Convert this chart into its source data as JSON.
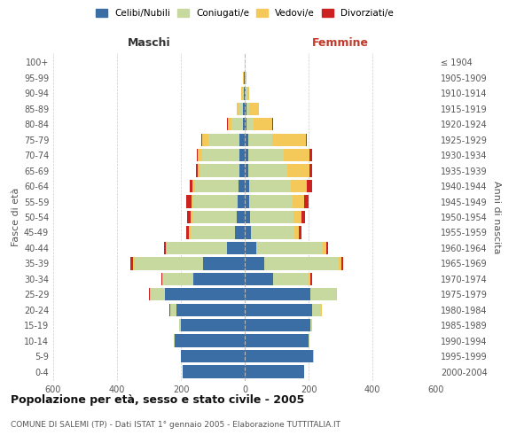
{
  "age_groups": [
    "0-4",
    "5-9",
    "10-14",
    "15-19",
    "20-24",
    "25-29",
    "30-34",
    "35-39",
    "40-44",
    "45-49",
    "50-54",
    "55-59",
    "60-64",
    "65-69",
    "70-74",
    "75-79",
    "80-84",
    "85-89",
    "90-94",
    "95-99",
    "100+"
  ],
  "birth_years": [
    "2000-2004",
    "1995-1999",
    "1990-1994",
    "1985-1989",
    "1980-1984",
    "1975-1979",
    "1970-1974",
    "1965-1969",
    "1960-1964",
    "1955-1959",
    "1950-1954",
    "1945-1949",
    "1940-1944",
    "1935-1939",
    "1930-1934",
    "1925-1929",
    "1920-1924",
    "1915-1919",
    "1910-1914",
    "1905-1909",
    "≤ 1904"
  ],
  "maschi": {
    "celibi": [
      195,
      200,
      220,
      200,
      215,
      250,
      160,
      130,
      55,
      30,
      25,
      22,
      20,
      18,
      17,
      18,
      6,
      5,
      3,
      2,
      0
    ],
    "coniugati": [
      0,
      0,
      2,
      5,
      18,
      45,
      95,
      215,
      190,
      140,
      140,
      140,
      135,
      120,
      115,
      95,
      35,
      12,
      5,
      2,
      0
    ],
    "vedovi": [
      0,
      0,
      0,
      0,
      1,
      2,
      2,
      5,
      3,
      5,
      5,
      5,
      8,
      10,
      16,
      20,
      12,
      8,
      4,
      2,
      0
    ],
    "divorziati": [
      0,
      0,
      0,
      0,
      2,
      3,
      5,
      8,
      5,
      8,
      10,
      15,
      8,
      5,
      3,
      2,
      2,
      0,
      0,
      0,
      0
    ]
  },
  "femmine": {
    "nubili": [
      185,
      215,
      200,
      205,
      210,
      205,
      90,
      60,
      35,
      20,
      18,
      15,
      15,
      12,
      12,
      12,
      5,
      5,
      2,
      1,
      0
    ],
    "coniugate": [
      0,
      1,
      3,
      5,
      30,
      80,
      110,
      235,
      210,
      135,
      135,
      135,
      130,
      120,
      110,
      75,
      22,
      10,
      5,
      2,
      0
    ],
    "vedove": [
      0,
      0,
      0,
      0,
      1,
      3,
      5,
      8,
      10,
      15,
      25,
      35,
      50,
      70,
      80,
      105,
      60,
      30,
      8,
      3,
      0
    ],
    "divorziate": [
      0,
      0,
      0,
      0,
      1,
      2,
      5,
      5,
      5,
      8,
      12,
      15,
      15,
      10,
      8,
      2,
      2,
      0,
      0,
      0,
      0
    ]
  },
  "colors": {
    "celibi": "#3A6EA5",
    "coniugati": "#C8D9A0",
    "vedovi": "#F5C85A",
    "divorziati": "#CC2222"
  },
  "xlim": 600,
  "title": "Popolazione per età, sesso e stato civile - 2005",
  "subtitle": "COMUNE DI SALEMI (TP) - Dati ISTAT 1° gennaio 2005 - Elaborazione TUTTITALIA.IT",
  "legend_labels": [
    "Celibi/Nubili",
    "Coniugati/e",
    "Vedovi/e",
    "Divorziati/e"
  ],
  "ylabel_left": "Fasce di età",
  "ylabel_right": "Anni di nascita",
  "maschi_label": "Maschi",
  "femmine_label": "Femmine"
}
